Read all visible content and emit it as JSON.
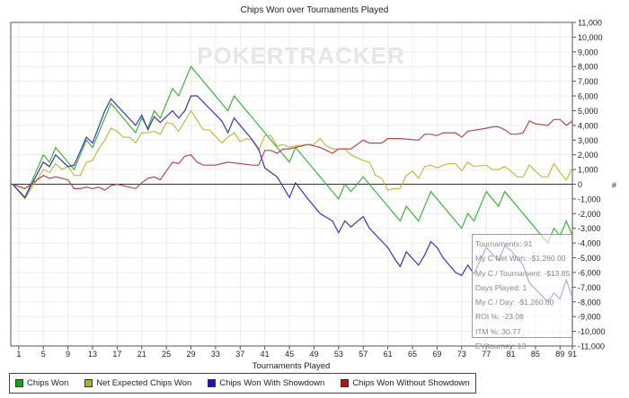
{
  "chart_data": {
    "type": "line",
    "title": "Chips Won over Tournaments Played",
    "xlabel": "Tournaments Played",
    "ylabel": "#",
    "watermark": "POKERTRACKER",
    "xlim": [
      0,
      91
    ],
    "ylim": [
      -11000,
      11000
    ],
    "x_ticks": [
      1,
      5,
      9,
      13,
      17,
      21,
      25,
      29,
      33,
      37,
      41,
      45,
      49,
      53,
      57,
      61,
      65,
      69,
      73,
      77,
      81,
      85,
      89,
      91
    ],
    "y_ticks": [
      "11,000",
      "10,000",
      "9,000",
      "8,000",
      "7,000",
      "6,000",
      "5,000",
      "4,000",
      "3,000",
      "2,000",
      "1,000",
      "0",
      "-1,000",
      "-2,000",
      "-3,000",
      "-4,000",
      "-5,000",
      "-6,000",
      "-7,000",
      "-8,000",
      "-9,000",
      "-10,000",
      "-11,000"
    ],
    "grid": true,
    "legend_position": "bottom-left",
    "series": [
      {
        "name": "Chips Won",
        "color": "#3cb43c",
        "swatch": "#1aa01a",
        "x": [
          0,
          2,
          5,
          6,
          7,
          10,
          12,
          13,
          16,
          20,
          21,
          22,
          23,
          24,
          26,
          27,
          29,
          35,
          36,
          45,
          46,
          53,
          54,
          55,
          57,
          63,
          64,
          66,
          68,
          73,
          74,
          75,
          77,
          79,
          80,
          87,
          88,
          89,
          90,
          91
        ],
        "y": [
          0,
          -900,
          2000,
          1500,
          2500,
          1000,
          3000,
          2500,
          5500,
          3500,
          4500,
          3800,
          5000,
          4500,
          6500,
          6000,
          8000,
          5000,
          6000,
          1500,
          2500,
          -1000,
          0,
          -500,
          500,
          -2500,
          -1500,
          -2500,
          -500,
          -3000,
          -2000,
          -2500,
          -500,
          -1500,
          -500,
          -4000,
          -3000,
          -3500,
          -2500,
          -3500
        ]
      },
      {
        "name": "Net Expected Chips Won",
        "color": "#c4bc3c",
        "swatch": "#b0b020",
        "x": [
          0,
          2,
          5,
          6,
          7,
          8,
          9,
          10,
          11,
          12,
          13,
          14,
          15,
          16,
          17,
          18,
          19,
          20,
          21,
          22,
          23,
          24,
          25,
          26,
          27,
          29,
          31,
          32,
          34,
          35,
          36,
          37,
          38,
          39,
          40,
          41,
          42,
          43,
          44,
          45,
          46,
          48,
          49,
          50,
          51,
          52,
          54,
          55,
          57,
          58,
          59,
          60,
          61,
          62,
          63,
          64,
          65,
          66,
          67,
          68,
          69,
          70,
          71,
          72,
          73,
          74,
          75,
          77,
          78,
          79,
          80,
          81,
          82,
          83,
          84,
          85,
          86,
          87,
          88,
          89,
          90,
          91
        ],
        "y": [
          0,
          -1000,
          1000,
          800,
          1400,
          1000,
          1200,
          600,
          600,
          1500,
          1600,
          2400,
          3000,
          3800,
          3600,
          3200,
          3200,
          2800,
          3500,
          3500,
          3600,
          3400,
          4200,
          4100,
          3600,
          5000,
          3700,
          3700,
          2800,
          3200,
          3500,
          2900,
          3100,
          3000,
          2300,
          3300,
          3300,
          2600,
          2700,
          2500,
          2600,
          2700,
          2700,
          3100,
          2600,
          2400,
          2400,
          2000,
          1600,
          1500,
          600,
          400,
          -400,
          -300,
          -300,
          600,
          900,
          400,
          1200,
          1300,
          1100,
          1300,
          1400,
          1400,
          900,
          1500,
          1200,
          1300,
          1000,
          1000,
          1200,
          900,
          500,
          500,
          1300,
          900,
          500,
          500,
          1400,
          800,
          300,
          1100
        ]
      },
      {
        "name": "Chips Won With Showdown",
        "color": "#3434c0",
        "swatch": "#1a1aa8",
        "x": [
          0,
          2,
          5,
          6,
          7,
          9,
          10,
          12,
          13,
          15,
          16,
          20,
          21,
          22,
          23,
          24,
          26,
          27,
          28,
          29,
          30,
          34,
          35,
          36,
          39,
          40,
          41,
          42,
          43,
          45,
          46,
          48,
          50,
          52,
          53,
          54,
          55,
          57,
          58,
          61,
          62,
          63,
          64,
          66,
          67,
          68,
          69,
          70,
          72,
          73,
          74,
          75,
          77,
          79,
          80,
          81,
          83,
          84,
          87,
          88,
          89,
          90,
          91
        ],
        "y": [
          0,
          -900,
          1500,
          1200,
          2000,
          1200,
          1300,
          3200,
          2800,
          5000,
          5800,
          4000,
          4700,
          3700,
          4600,
          4200,
          5000,
          4500,
          5000,
          6000,
          6000,
          4300,
          3500,
          4500,
          3000,
          2400,
          1100,
          800,
          500,
          -900,
          100,
          -1000,
          -2000,
          -2500,
          -3300,
          -2500,
          -2900,
          -2200,
          -3000,
          -4300,
          -5000,
          -5600,
          -4600,
          -5500,
          -4800,
          -3900,
          -4300,
          -5000,
          -6000,
          -6200,
          -5500,
          -6100,
          -4300,
          -5200,
          -4200,
          -4500,
          -5500,
          -6700,
          -8000,
          -7400,
          -7800,
          -6500,
          -7700
        ]
      },
      {
        "name": "Chips Won Without Showdown",
        "color": "#c04444",
        "swatch": "#a81a1a",
        "x": [
          0,
          2,
          5,
          6,
          7,
          9,
          10,
          11,
          12,
          13,
          14,
          15,
          16,
          17,
          20,
          21,
          22,
          23,
          24,
          26,
          27,
          28,
          29,
          30,
          31,
          33,
          35,
          37,
          39,
          40,
          41,
          42,
          43,
          44,
          45,
          48,
          49,
          50,
          52,
          53,
          55,
          57,
          58,
          60,
          61,
          63,
          66,
          67,
          68,
          69,
          70,
          72,
          73,
          74,
          77,
          78,
          79,
          80,
          81,
          82,
          83,
          84,
          85,
          87,
          88,
          89,
          90,
          91
        ],
        "y": [
          0,
          -300,
          600,
          400,
          500,
          300,
          -300,
          -300,
          -200,
          -300,
          -200,
          -400,
          -100,
          0,
          -300,
          100,
          400,
          500,
          300,
          1500,
          1400,
          1900,
          2000,
          1500,
          1300,
          1300,
          1500,
          1400,
          1300,
          1300,
          2300,
          2300,
          2100,
          2400,
          2400,
          2700,
          2600,
          2500,
          2100,
          2400,
          2400,
          3000,
          2800,
          2800,
          3100,
          3100,
          3000,
          3400,
          3400,
          3300,
          3500,
          3500,
          3200,
          3600,
          3800,
          3900,
          3900,
          3700,
          3400,
          3400,
          3500,
          4300,
          4100,
          4000,
          4400,
          4400,
          4000,
          4300
        ]
      }
    ]
  },
  "tooltip": {
    "lines": [
      "Tournaments: 91",
      "My C Net Won: -$1,260.00",
      "My C / Tournament: -$13.85",
      "Days Played: 1",
      "My C / Day: -$1,260.00",
      "ROI %: -23.08",
      "ITM %: 30.77",
      "EV/tourney: 13"
    ]
  }
}
